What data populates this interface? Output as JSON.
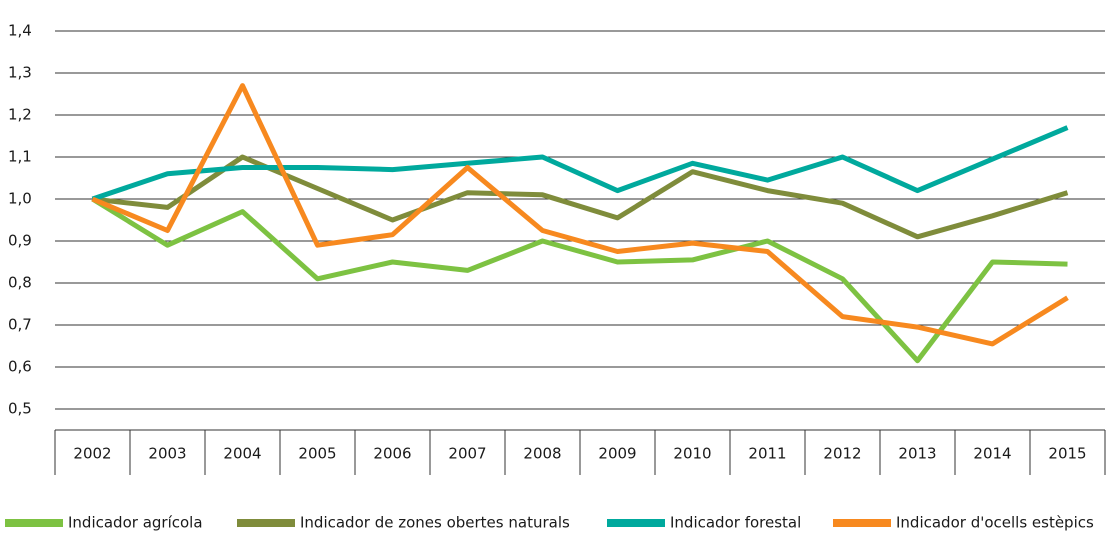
{
  "chart_data": {
    "type": "line",
    "categories": [
      "2002",
      "2003",
      "2004",
      "2005",
      "2006",
      "2007",
      "2008",
      "2009",
      "2010",
      "2011",
      "2012",
      "2013",
      "2014",
      "2015"
    ],
    "series": [
      {
        "name": "Indicador agrícola",
        "color": "#7dc242",
        "values": [
          1.0,
          0.89,
          0.97,
          0.81,
          0.85,
          0.83,
          0.9,
          0.85,
          0.855,
          0.9,
          0.81,
          0.615,
          0.85,
          0.845
        ]
      },
      {
        "name": "Indicador de zones obertes naturals",
        "color": "#7f8c3b",
        "values": [
          1.0,
          0.98,
          1.1,
          1.025,
          0.95,
          1.015,
          1.01,
          0.955,
          1.065,
          1.02,
          0.99,
          0.91,
          0.96,
          1.015
        ]
      },
      {
        "name": "Indicador forestal",
        "color": "#00a99d",
        "values": [
          1.0,
          1.06,
          1.075,
          1.075,
          1.07,
          1.085,
          1.1,
          1.02,
          1.085,
          1.045,
          1.1,
          1.02,
          1.095,
          1.17
        ]
      },
      {
        "name": "Indicador d'ocells estèpics",
        "color": "#f7891f",
        "values": [
          1.0,
          0.925,
          1.27,
          0.89,
          0.915,
          1.075,
          0.925,
          0.875,
          0.895,
          0.875,
          0.72,
          0.695,
          0.655,
          0.765
        ]
      }
    ],
    "ylim": [
      0.5,
      1.4
    ],
    "yticks": [
      {
        "value": 0.5,
        "label": "0,5"
      },
      {
        "value": 0.6,
        "label": "0,6"
      },
      {
        "value": 0.7,
        "label": "0,7"
      },
      {
        "value": 0.8,
        "label": "0,8"
      },
      {
        "value": 0.9,
        "label": "0,9"
      },
      {
        "value": 1.0,
        "label": "1,0"
      },
      {
        "value": 1.1,
        "label": "1,1"
      },
      {
        "value": 1.2,
        "label": "1,2"
      },
      {
        "value": 1.3,
        "label": "1,3"
      },
      {
        "value": 1.4,
        "label": "1,4"
      }
    ],
    "grid": true,
    "legend": "bottom"
  }
}
